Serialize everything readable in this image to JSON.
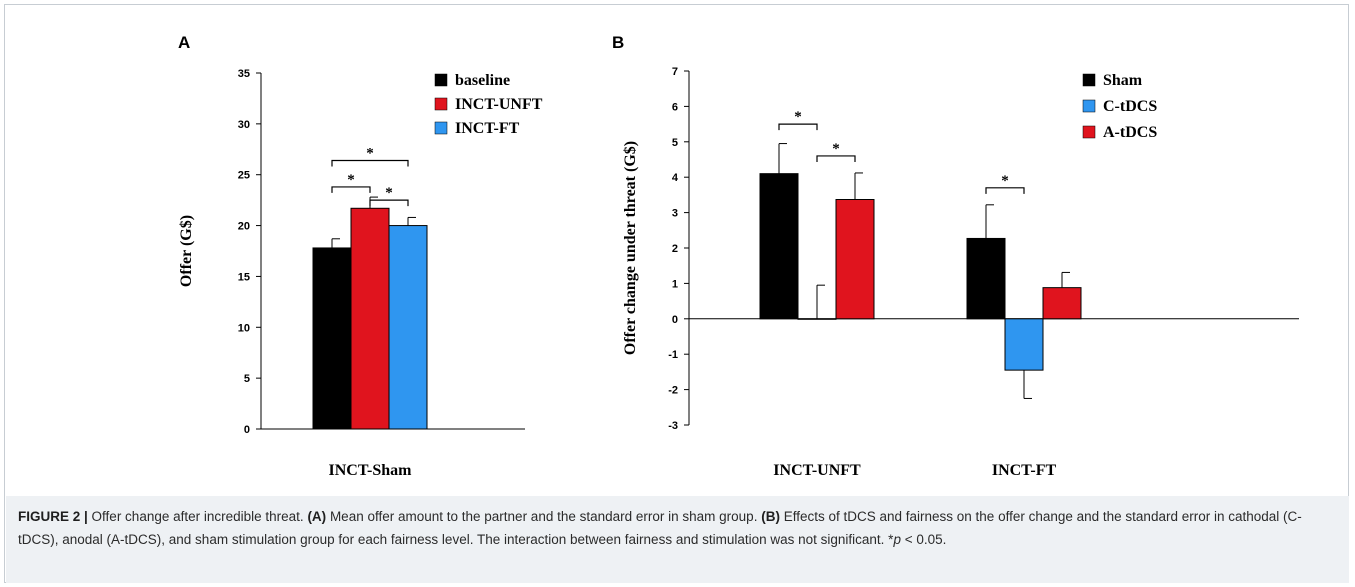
{
  "panels": {
    "a_letter": "A",
    "b_letter": "B"
  },
  "chart_data": [
    {
      "type": "bar",
      "ylabel": "Offer (G$)",
      "ylim": [
        0,
        35
      ],
      "yticks": [
        "0",
        "5",
        "10",
        "15",
        "20",
        "25",
        "30",
        "35"
      ],
      "categories": [
        "INCT-Sham"
      ],
      "series": [
        {
          "name": "baseline",
          "color": "#000000",
          "values": [
            17.8
          ],
          "errors": [
            0.9
          ]
        },
        {
          "name": "INCT-UNFT",
          "color": "#e0141e",
          "values": [
            21.7
          ],
          "errors": [
            1.1
          ]
        },
        {
          "name": "INCT-FT",
          "color": "#2f96f0",
          "values": [
            20.0
          ],
          "errors": [
            0.8
          ]
        }
      ],
      "significance": [
        "*",
        "*",
        "*"
      ],
      "legend": "top-right",
      "grid": false
    },
    {
      "type": "bar",
      "ylabel": "Offer change under threat (G$)",
      "ylim": [
        -3,
        7
      ],
      "yticks": [
        "-3",
        "-2",
        "-1",
        "0",
        "1",
        "2",
        "3",
        "4",
        "5",
        "6",
        "7"
      ],
      "categories": [
        "INCT-UNFT",
        "INCT-FT"
      ],
      "series": [
        {
          "name": "Sham",
          "color": "#000000",
          "values": [
            4.1,
            2.27
          ],
          "errors": [
            0.85,
            0.95
          ]
        },
        {
          "name": "C-tDCS",
          "color": "#2f96f0",
          "values": [
            0.0,
            -1.45
          ],
          "errors": [
            0.95,
            0.8
          ]
        },
        {
          "name": "A-tDCS",
          "color": "#e0141e",
          "values": [
            3.37,
            0.88
          ],
          "errors": [
            0.75,
            0.43
          ]
        }
      ],
      "significance": [
        "*",
        "*",
        "*"
      ],
      "legend": "top-right",
      "grid": false
    }
  ],
  "caption": {
    "fig_label": "FIGURE 2 |",
    "lead": " Offer change after incredible threat. ",
    "a_label": "(A)",
    "a_text": " Mean offer amount to the partner and the standard error in sham group. ",
    "b_label": "(B)",
    "b_text": " Effects of tDCS and fairness on the offer change and the standard error in cathodal (C-tDCS), anodal (A-tDCS), and sham stimulation group for each fairness level. The interaction between fairness and stimulation was not significant. *",
    "p_symbol": "p",
    "p_text": " < 0.05."
  }
}
